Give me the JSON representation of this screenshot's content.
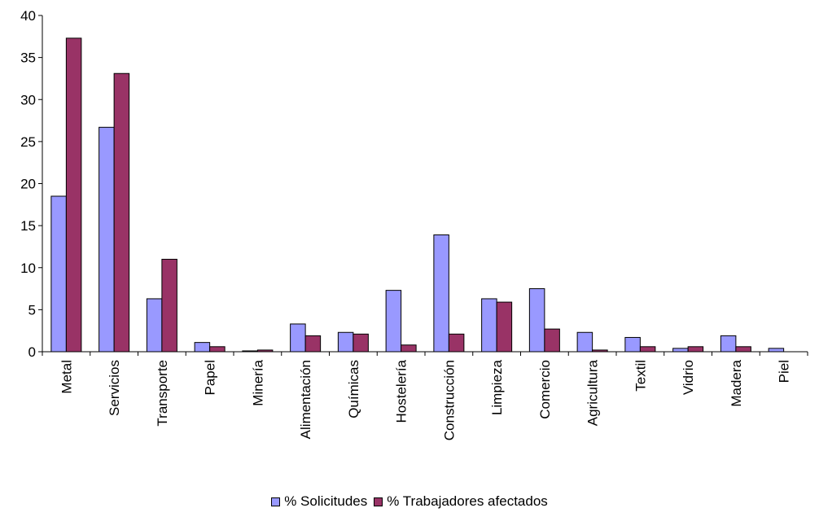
{
  "chart_data": {
    "type": "bar",
    "categories": [
      "Metal",
      "Servicios",
      "Transporte",
      "Papel",
      "Minería",
      "Alimentación",
      "Químicas",
      "Hostelería",
      "Construcción",
      "Limpieza",
      "Comercio",
      "Agricultura",
      "Textil",
      "Vidrio",
      "Madera",
      "Piel"
    ],
    "series": [
      {
        "name": "% Solicitudes",
        "color": "#9999ff",
        "values": [
          18.5,
          26.7,
          6.3,
          1.1,
          0.1,
          3.3,
          2.3,
          7.3,
          13.9,
          6.3,
          7.5,
          2.3,
          1.7,
          0.4,
          1.9,
          0.4
        ]
      },
      {
        "name": "% Trabajadores afectados",
        "color": "#993366",
        "values": [
          37.3,
          33.1,
          11.0,
          0.6,
          0.2,
          1.9,
          2.1,
          0.8,
          2.1,
          5.9,
          2.7,
          0.2,
          0.6,
          0.6,
          0.6,
          0.0
        ]
      }
    ],
    "ylim": [
      0,
      40
    ],
    "yticks": [
      0,
      5,
      10,
      15,
      20,
      25,
      30,
      35,
      40
    ],
    "grid": false,
    "legend_position": "bottom"
  }
}
